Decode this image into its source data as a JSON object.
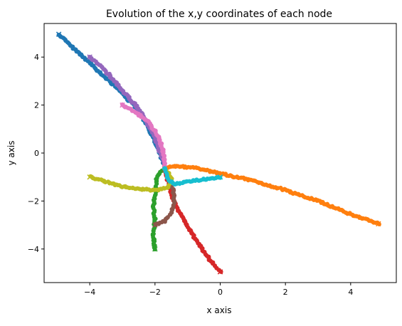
{
  "chart_data": {
    "type": "scatter",
    "title": "Evolution of the x,y coordinates of each node",
    "xlabel": "x axis",
    "ylabel": "y axis",
    "xlim": [
      -5.4,
      5.4
    ],
    "ylim": [
      -5.4,
      5.4
    ],
    "xticks": [
      -4,
      -2,
      0,
      2,
      4
    ],
    "yticks": [
      -4,
      -2,
      0,
      2,
      4
    ],
    "xtick_labels": [
      "−4",
      "−2",
      "0",
      "2",
      "4"
    ],
    "ytick_labels": [
      "−4",
      "−2",
      "0",
      "2",
      "4"
    ],
    "grid": false,
    "legend": "none",
    "series": [
      {
        "color": "#1f77b4",
        "start": [
          -4.95,
          4.95
        ],
        "points": [
          [
            -4.95,
            4.95
          ],
          [
            -4.6,
            4.5
          ],
          [
            -4.2,
            4.0
          ],
          [
            -3.8,
            3.5
          ],
          [
            -3.4,
            3.0
          ],
          [
            -3.0,
            2.5
          ],
          [
            -2.6,
            1.9
          ],
          [
            -2.3,
            1.3
          ],
          [
            -2.05,
            0.6
          ],
          [
            -1.85,
            0.0
          ],
          [
            -1.7,
            -0.6
          ]
        ]
      },
      {
        "color": "#ff7f0e",
        "start": [
          4.85,
          -2.95
        ],
        "points": [
          [
            4.85,
            -2.95
          ],
          [
            4.0,
            -2.55
          ],
          [
            3.0,
            -2.0
          ],
          [
            2.0,
            -1.55
          ],
          [
            1.0,
            -1.15
          ],
          [
            0.0,
            -0.85
          ],
          [
            -0.8,
            -0.6
          ],
          [
            -1.5,
            -0.55
          ],
          [
            -1.7,
            -0.65
          ]
        ]
      },
      {
        "color": "#2ca02c",
        "start": [
          -2.0,
          -4.0
        ],
        "points": [
          [
            -2.0,
            -4.0
          ],
          [
            -2.05,
            -3.4
          ],
          [
            -2.0,
            -2.8
          ],
          [
            -2.05,
            -2.2
          ],
          [
            -1.98,
            -1.6
          ],
          [
            -1.95,
            -1.05
          ],
          [
            -1.8,
            -0.75
          ],
          [
            -1.7,
            -0.65
          ]
        ]
      },
      {
        "color": "#d62728",
        "start": [
          0.0,
          -4.95
        ],
        "points": [
          [
            0.0,
            -4.95
          ],
          [
            -0.3,
            -4.5
          ],
          [
            -0.6,
            -3.9
          ],
          [
            -0.9,
            -3.3
          ],
          [
            -1.2,
            -2.6
          ],
          [
            -1.45,
            -1.9
          ],
          [
            -1.6,
            -1.2
          ],
          [
            -1.7,
            -0.65
          ]
        ]
      },
      {
        "color": "#9467bd",
        "start": [
          -4.0,
          4.0
        ],
        "points": [
          [
            -4.0,
            4.0
          ],
          [
            -3.65,
            3.6
          ],
          [
            -3.3,
            3.1
          ],
          [
            -3.0,
            2.6
          ],
          [
            -2.6,
            2.0
          ],
          [
            -2.3,
            1.4
          ],
          [
            -2.05,
            0.8
          ],
          [
            -1.9,
            0.2
          ],
          [
            -1.75,
            -0.35
          ],
          [
            -1.7,
            -0.65
          ]
        ]
      },
      {
        "color": "#8c564b",
        "start": [
          -2.0,
          -3.0
        ],
        "points": [
          [
            -2.0,
            -3.0
          ],
          [
            -1.7,
            -2.85
          ],
          [
            -1.5,
            -2.5
          ],
          [
            -1.4,
            -2.0
          ],
          [
            -1.45,
            -1.5
          ],
          [
            -1.6,
            -1.0
          ],
          [
            -1.7,
            -0.65
          ]
        ]
      },
      {
        "color": "#e377c2",
        "start": [
          -3.0,
          2.0
        ],
        "points": [
          [
            -3.0,
            2.0
          ],
          [
            -2.6,
            1.7
          ],
          [
            -2.2,
            1.3
          ],
          [
            -1.9,
            0.7
          ],
          [
            -1.75,
            0.1
          ],
          [
            -1.7,
            -0.4
          ],
          [
            -1.7,
            -0.65
          ]
        ]
      },
      {
        "color": "#bcbd22",
        "start": [
          -4.0,
          -1.0
        ],
        "points": [
          [
            -4.0,
            -1.0
          ],
          [
            -3.5,
            -1.2
          ],
          [
            -3.0,
            -1.4
          ],
          [
            -2.5,
            -1.5
          ],
          [
            -2.0,
            -1.55
          ],
          [
            -1.6,
            -1.45
          ],
          [
            -1.5,
            -1.05
          ],
          [
            -1.6,
            -0.8
          ],
          [
            -1.7,
            -0.65
          ]
        ]
      },
      {
        "color": "#17becf",
        "start": [
          0.0,
          -1.0
        ],
        "points": [
          [
            0.0,
            -1.0
          ],
          [
            -0.5,
            -1.1
          ],
          [
            -1.0,
            -1.2
          ],
          [
            -1.4,
            -1.3
          ],
          [
            -1.6,
            -1.1
          ],
          [
            -1.7,
            -0.65
          ]
        ]
      }
    ]
  }
}
